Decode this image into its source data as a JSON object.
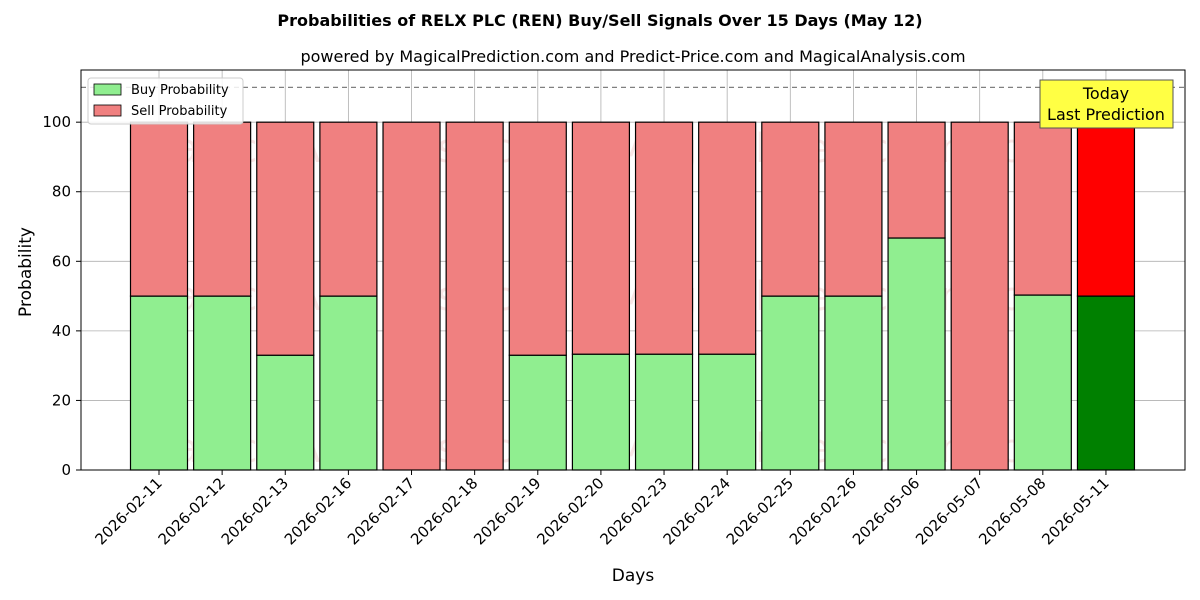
{
  "chart_data": {
    "type": "bar",
    "stacked": true,
    "title": "Probabilities of RELX PLC (REN) Buy/Sell Signals Over 15 Days (May 12)",
    "subtitle": "powered by MagicalPrediction.com and Predict-Price.com and MagicalAnalysis.com",
    "xlabel": "Days",
    "ylabel": "Probability",
    "ylim": [
      0,
      115
    ],
    "yticks": [
      0,
      20,
      40,
      60,
      80,
      100
    ],
    "grid": true,
    "legend_position": "top-left",
    "reference_line": 110,
    "categories": [
      "2026-02-11",
      "2026-02-12",
      "2026-02-13",
      "2026-02-16",
      "2026-02-17",
      "2026-02-18",
      "2026-02-19",
      "2026-02-20",
      "2026-02-23",
      "2026-02-24",
      "2026-02-25",
      "2026-02-26",
      "2026-05-06",
      "2026-05-07",
      "2026-05-08",
      "2026-05-11"
    ],
    "series": [
      {
        "name": "Buy Probability",
        "color": "#90EE90",
        "highlight_color": "#008000",
        "values": [
          50,
          50,
          33,
          50,
          0,
          0,
          33,
          33.3,
          33.3,
          33.3,
          50,
          50,
          66.7,
          0,
          50.3,
          50
        ]
      },
      {
        "name": "Sell Probability",
        "color": "#F08080",
        "highlight_color": "#FF0000",
        "values": [
          50,
          50,
          67,
          50,
          100,
          100,
          67,
          66.7,
          66.7,
          66.7,
          50,
          50,
          33.3,
          100,
          49.7,
          50
        ]
      }
    ],
    "highlight_index": 15,
    "annotation": {
      "line1": "Today",
      "line2": "Last Prediction",
      "color": "#FFFF44"
    },
    "watermarks": [
      "MagicalAnalysis.com",
      "MagicalPrediction.com"
    ]
  }
}
